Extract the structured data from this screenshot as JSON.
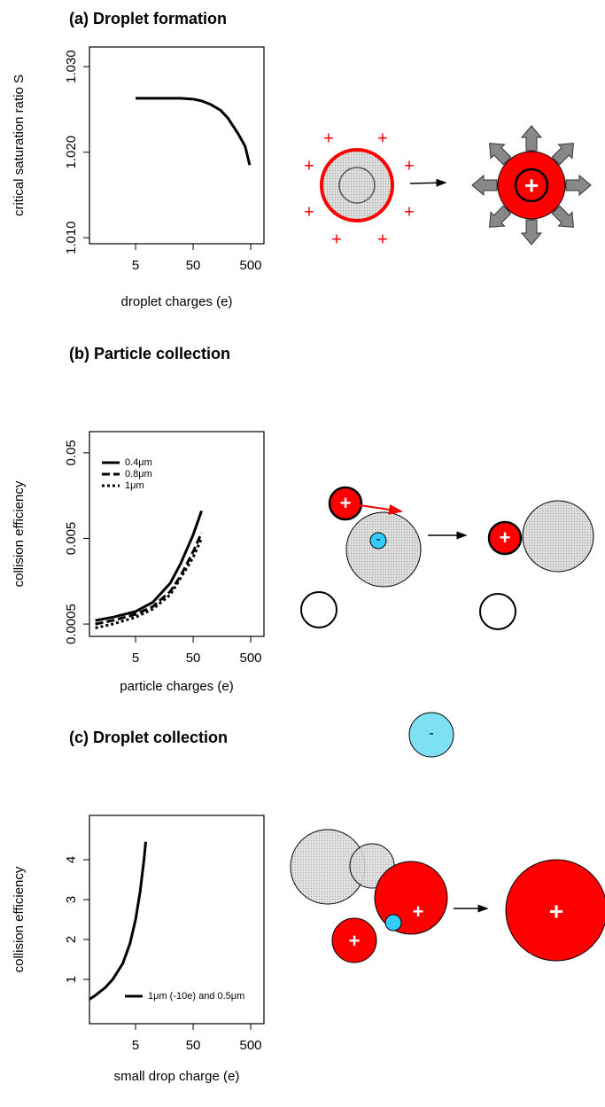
{
  "chart_data": [
    {
      "type": "line",
      "title": "(a) Droplet formation",
      "xlabel": "droplet charges (e)",
      "ylabel": "critical saturation ratio S",
      "xscale": "log",
      "yscale": "linear",
      "x": [
        5,
        10,
        20,
        30,
        50,
        70,
        100,
        150,
        200,
        300,
        400,
        480
      ],
      "series": [
        {
          "name": null,
          "color": "#000000",
          "linestyle": "solid",
          "values": [
            1.0263,
            1.0263,
            1.0263,
            1.0263,
            1.0262,
            1.026,
            1.0256,
            1.0249,
            1.024,
            1.0222,
            1.0207,
            1.0185
          ]
        }
      ],
      "xlim": [
        0.79,
        850
      ],
      "ylim": [
        1.0093,
        1.0323
      ],
      "xticks": [
        5,
        50,
        500
      ],
      "yticks": [
        {
          "value": 1.01,
          "label": "1.010"
        },
        {
          "value": 1.02,
          "label": "1.020"
        },
        {
          "value": 1.03,
          "label": "1.030"
        }
      ],
      "annotations": [
        "+"
      ]
    },
    {
      "type": "line",
      "title": "(b) Particle collection",
      "xlabel": "particle charges (e)",
      "ylabel": "collision efficiency",
      "xscale": "log",
      "yscale": "log",
      "legend": "top-left",
      "x": [
        1,
        2,
        5,
        10,
        20,
        30,
        50,
        70
      ],
      "series": [
        {
          "name": "0.4μm",
          "color": "#000000",
          "linestyle": "solid",
          "values": [
            0.00055,
            0.0006,
            0.0007,
            0.0009,
            0.0015,
            0.0025,
            0.0055,
            0.0105
          ]
        },
        {
          "name": "0.8μm",
          "color": "#000000",
          "linestyle": "dashed",
          "values": [
            0.0005,
            0.00055,
            0.00065,
            0.0008,
            0.0012,
            0.0018,
            0.0035,
            0.0058
          ]
        },
        {
          "name": "1μm",
          "color": "#000000",
          "linestyle": "dotted",
          "values": [
            0.00045,
            0.0005,
            0.0006,
            0.00075,
            0.0011,
            0.0017,
            0.003,
            0.005
          ]
        }
      ],
      "xlim": [
        0.79,
        850
      ],
      "ylim": [
        0.000359,
        0.0883
      ],
      "xticks": [
        5,
        50,
        500
      ],
      "yticks": [
        0.0005,
        0.005,
        0.05
      ],
      "annotations": [
        "+",
        "-"
      ]
    },
    {
      "type": "line",
      "title": "(c) Droplet collection",
      "xlabel": "small drop charge (e)",
      "ylabel": "collision efficiency",
      "xscale": "log",
      "yscale": "linear",
      "legend": "bottom-right",
      "x": [
        0.79,
        1,
        1.5,
        2,
        3,
        4,
        5,
        6,
        7,
        7.5
      ],
      "series": [
        {
          "name": "1μm (-10e) and 0.5μm",
          "color": "#000000",
          "linestyle": "solid",
          "values": [
            0.5,
            0.6,
            0.8,
            1.0,
            1.4,
            1.9,
            2.5,
            3.2,
            4.0,
            4.45
          ]
        }
      ],
      "xlim": [
        0.79,
        850
      ],
      "ylim": [
        -0.11,
        5.11
      ],
      "xticks": [
        5,
        50,
        500
      ],
      "yticks": [
        1,
        2,
        3,
        4
      ],
      "annotations": [
        "+",
        "-"
      ]
    }
  ]
}
